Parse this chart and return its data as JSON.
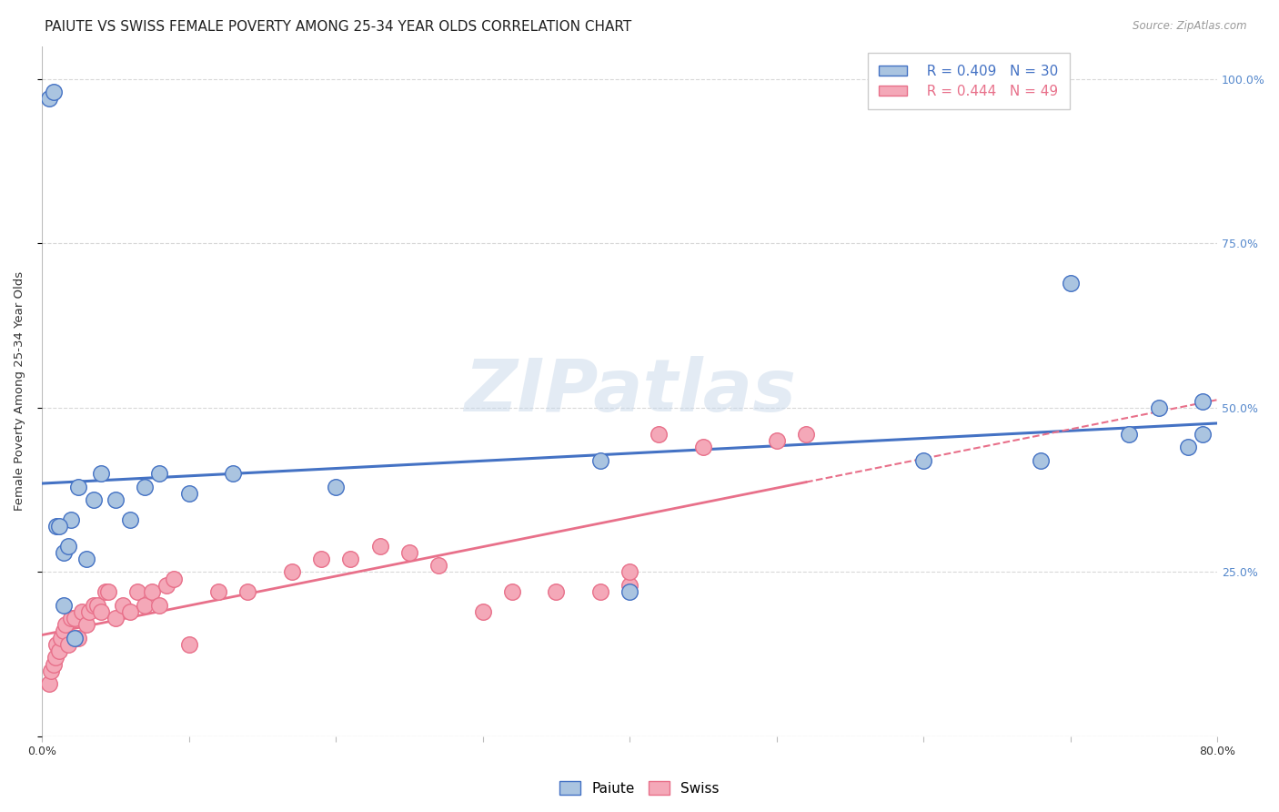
{
  "title": "PAIUTE VS SWISS FEMALE POVERTY AMONG 25-34 YEAR OLDS CORRELATION CHART",
  "source": "Source: ZipAtlas.com",
  "ylabel": "Female Poverty Among 25-34 Year Olds",
  "xlim": [
    0.0,
    0.8
  ],
  "ylim": [
    0.0,
    1.05
  ],
  "paiute_color": "#aac4e0",
  "swiss_color": "#f4a8b8",
  "paiute_line_color": "#4472c4",
  "swiss_line_color": "#e8708a",
  "legend_r_paiute": "R = 0.409",
  "legend_n_paiute": "N = 30",
  "legend_r_swiss": "R = 0.444",
  "legend_n_swiss": "N = 49",
  "watermark": "ZIPatlas",
  "paiute_x": [
    0.01,
    0.015,
    0.02,
    0.025,
    0.03,
    0.035,
    0.04,
    0.05,
    0.06,
    0.07,
    0.08,
    0.1,
    0.13,
    0.2,
    0.38,
    0.4,
    0.6,
    0.68,
    0.7,
    0.74,
    0.76,
    0.78,
    0.79,
    0.79,
    0.005,
    0.008,
    0.012,
    0.015,
    0.018,
    0.022
  ],
  "paiute_y": [
    0.32,
    0.28,
    0.33,
    0.38,
    0.27,
    0.36,
    0.4,
    0.36,
    0.33,
    0.38,
    0.4,
    0.37,
    0.4,
    0.38,
    0.42,
    0.22,
    0.42,
    0.42,
    0.69,
    0.46,
    0.5,
    0.44,
    0.51,
    0.46,
    0.97,
    0.98,
    0.32,
    0.2,
    0.29,
    0.15
  ],
  "swiss_x": [
    0.005,
    0.006,
    0.008,
    0.009,
    0.01,
    0.012,
    0.013,
    0.015,
    0.016,
    0.018,
    0.02,
    0.022,
    0.025,
    0.027,
    0.03,
    0.032,
    0.035,
    0.038,
    0.04,
    0.043,
    0.045,
    0.05,
    0.055,
    0.06,
    0.065,
    0.07,
    0.075,
    0.08,
    0.085,
    0.09,
    0.1,
    0.12,
    0.14,
    0.17,
    0.19,
    0.21,
    0.23,
    0.25,
    0.27,
    0.3,
    0.32,
    0.35,
    0.38,
    0.4,
    0.4,
    0.42,
    0.45,
    0.5,
    0.52
  ],
  "swiss_y": [
    0.08,
    0.1,
    0.11,
    0.12,
    0.14,
    0.13,
    0.15,
    0.16,
    0.17,
    0.14,
    0.18,
    0.18,
    0.15,
    0.19,
    0.17,
    0.19,
    0.2,
    0.2,
    0.19,
    0.22,
    0.22,
    0.18,
    0.2,
    0.19,
    0.22,
    0.2,
    0.22,
    0.2,
    0.23,
    0.24,
    0.14,
    0.22,
    0.22,
    0.25,
    0.27,
    0.27,
    0.29,
    0.28,
    0.26,
    0.19,
    0.22,
    0.22,
    0.22,
    0.23,
    0.25,
    0.46,
    0.44,
    0.45,
    0.46
  ],
  "background_color": "#ffffff",
  "grid_color": "#d8d8d8",
  "title_fontsize": 11,
  "axis_label_fontsize": 9.5,
  "tick_fontsize": 9,
  "right_tick_color": "#5588cc"
}
